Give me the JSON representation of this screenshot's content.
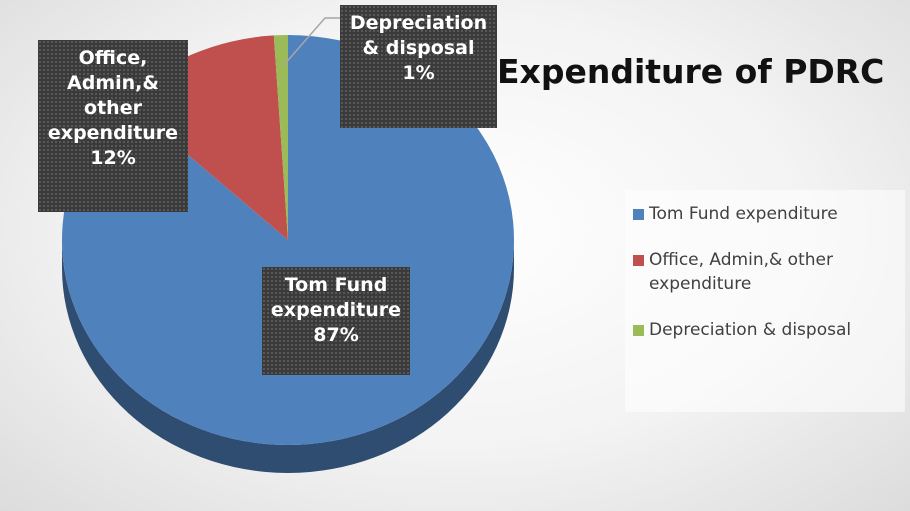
{
  "chart_data": {
    "type": "pie",
    "title": "Expenditure of PDRC",
    "categories": [
      "Tom Fund expenditure",
      "Office, Admin,& other expenditure",
      "Depreciation & disposal"
    ],
    "values": [
      87,
      12,
      1
    ],
    "value_labels": [
      "87%",
      "12%",
      "1%"
    ],
    "colors": [
      "#4f81bd",
      "#c0504d",
      "#9bbb59"
    ],
    "legend": "right"
  }
}
